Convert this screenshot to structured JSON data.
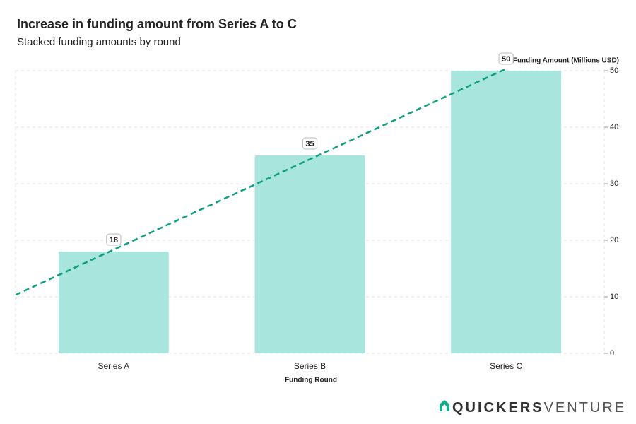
{
  "chart_data": {
    "type": "bar",
    "title": "Increase in funding amount from Series A to C",
    "subtitle": "Stacked funding amounts by round",
    "categories": [
      "Series A",
      "Series B",
      "Series C"
    ],
    "values": [
      18,
      35,
      50
    ],
    "color": "#a8e6dd",
    "ylim": [
      0,
      50
    ],
    "yticks": [
      0,
      10,
      20,
      30,
      40,
      50
    ],
    "ylabel": "Funding Amount (Millions USD)",
    "xlabel": "Funding Round",
    "grid": true,
    "trendline": true,
    "trend_color": "#0e9f80"
  },
  "brand": {
    "bold": "QUICKERS",
    "light": "VENTURE"
  }
}
